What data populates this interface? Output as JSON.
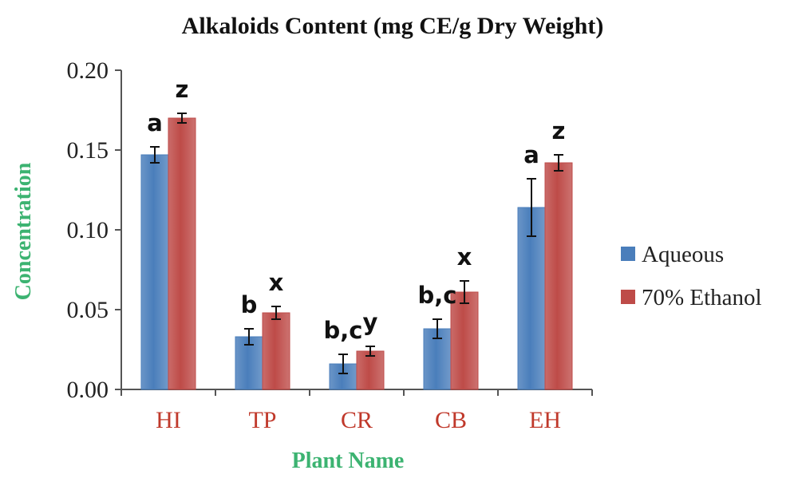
{
  "chart_data": {
    "type": "bar",
    "title": "Alkaloids Content (mg CE/g Dry Weight)",
    "xlabel": "Plant Name",
    "ylabel": "Concentration",
    "ylim": [
      0,
      0.2
    ],
    "yticks": [
      "0.00",
      "0.05",
      "0.10",
      "0.15",
      "0.20"
    ],
    "categories": [
      "HI",
      "TP",
      "CR",
      "CB",
      "EH"
    ],
    "legend_position": "right",
    "grid": false,
    "series": [
      {
        "name": "Aqueous",
        "color": "#4a7ebb",
        "values": [
          0.147,
          0.033,
          0.016,
          0.038,
          0.114
        ],
        "errors": [
          0.005,
          0.005,
          0.006,
          0.006,
          0.018
        ],
        "labels": [
          "a",
          "b",
          "b,c",
          "b,c",
          "a"
        ]
      },
      {
        "name": "70% Ethanol",
        "color": "#be4b48",
        "values": [
          0.17,
          0.048,
          0.024,
          0.061,
          0.142
        ],
        "errors": [
          0.003,
          0.004,
          0.003,
          0.007,
          0.005
        ],
        "labels": [
          "z",
          "x",
          "y",
          "x",
          "z"
        ]
      }
    ]
  }
}
